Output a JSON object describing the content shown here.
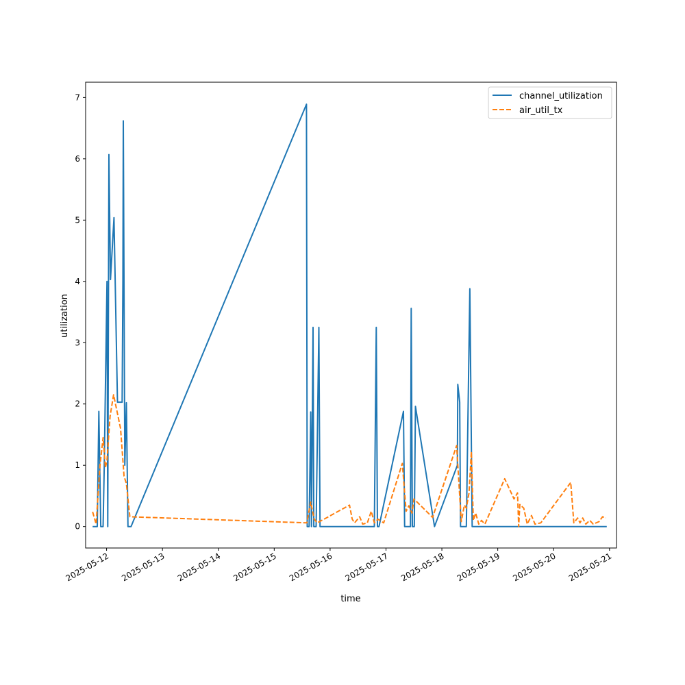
{
  "chart_data": {
    "type": "line",
    "xlabel": "time",
    "ylabel": "utilization",
    "x_is_date": true,
    "xlim": [
      "2025-05-11T15:00",
      "2025-05-21T03:00"
    ],
    "ylim": [
      -0.35,
      7.25
    ],
    "x_ticks": [
      {
        "label": "2025-05-12",
        "value": "2025-05-12T00:00"
      },
      {
        "label": "2025-05-13",
        "value": "2025-05-13T00:00"
      },
      {
        "label": "2025-05-14",
        "value": "2025-05-14T00:00"
      },
      {
        "label": "2025-05-15",
        "value": "2025-05-15T00:00"
      },
      {
        "label": "2025-05-16",
        "value": "2025-05-16T00:00"
      },
      {
        "label": "2025-05-17",
        "value": "2025-05-17T00:00"
      },
      {
        "label": "2025-05-18",
        "value": "2025-05-18T00:00"
      },
      {
        "label": "2025-05-19",
        "value": "2025-05-19T00:00"
      },
      {
        "label": "2025-05-20",
        "value": "2025-05-20T00:00"
      },
      {
        "label": "2025-05-21",
        "value": "2025-05-21T00:00"
      }
    ],
    "y_ticks": [
      {
        "label": "0",
        "value": 0
      },
      {
        "label": "1",
        "value": 1
      },
      {
        "label": "2",
        "value": 2
      },
      {
        "label": "3",
        "value": 3
      },
      {
        "label": "4",
        "value": 4
      },
      {
        "label": "5",
        "value": 5
      },
      {
        "label": "6",
        "value": 6
      },
      {
        "label": "7",
        "value": 7
      }
    ],
    "grid": false,
    "legend_position": "top-right",
    "series": [
      {
        "name": "channel_utilization",
        "color": "#1f77b4",
        "dash": "solid",
        "points": [
          [
            "2025-05-11T18:00",
            0
          ],
          [
            "2025-05-11T20:00",
            0
          ],
          [
            "2025-05-11T20:40",
            1.88
          ],
          [
            "2025-05-11T21:30",
            0
          ],
          [
            "2025-05-11T22:30",
            0
          ],
          [
            "2025-05-11T23:00",
            1.0
          ],
          [
            "2025-05-12T00:10",
            4.0
          ],
          [
            "2025-05-12T00:30",
            0
          ],
          [
            "2025-05-12T01:00",
            6.07
          ],
          [
            "2025-05-12T01:40",
            4.03
          ],
          [
            "2025-05-12T03:10",
            5.04
          ],
          [
            "2025-05-12T04:40",
            2.03
          ],
          [
            "2025-05-12T06:10",
            2.03
          ],
          [
            "2025-05-12T06:40",
            2.03
          ],
          [
            "2025-05-12T07:00",
            4.0
          ],
          [
            "2025-05-12T07:10",
            6.62
          ],
          [
            "2025-05-12T07:50",
            1.0
          ],
          [
            "2025-05-12T08:30",
            2.02
          ],
          [
            "2025-05-12T09:10",
            0
          ],
          [
            "2025-05-12T10:30",
            0
          ],
          [
            "2025-05-15T13:50",
            6.89
          ],
          [
            "2025-05-15T14:10",
            0
          ],
          [
            "2025-05-15T15:00",
            0
          ],
          [
            "2025-05-15T15:40",
            1.87
          ],
          [
            "2025-05-15T16:00",
            0
          ],
          [
            "2025-05-15T16:40",
            3.25
          ],
          [
            "2025-05-15T17:00",
            0
          ],
          [
            "2025-05-15T18:00",
            0
          ],
          [
            "2025-05-15T19:10",
            3.25
          ],
          [
            "2025-05-15T19:40",
            0
          ],
          [
            "2025-05-16T19:00",
            0
          ],
          [
            "2025-05-16T19:50",
            3.25
          ],
          [
            "2025-05-16T20:20",
            0
          ],
          [
            "2025-05-16T21:00",
            0
          ],
          [
            "2025-05-17T07:30",
            1.88
          ],
          [
            "2025-05-17T08:00",
            0
          ],
          [
            "2025-05-17T10:30",
            0
          ],
          [
            "2025-05-17T10:50",
            3.56
          ],
          [
            "2025-05-17T11:20",
            0
          ],
          [
            "2025-05-17T12:10",
            0
          ],
          [
            "2025-05-17T12:40",
            1.96
          ],
          [
            "2025-05-17T20:50",
            0
          ],
          [
            "2025-05-18T06:40",
            1.0
          ],
          [
            "2025-05-18T06:50",
            2.32
          ],
          [
            "2025-05-18T07:40",
            2.03
          ],
          [
            "2025-05-18T08:00",
            0
          ],
          [
            "2025-05-18T10:30",
            0
          ],
          [
            "2025-05-18T12:00",
            3.88
          ],
          [
            "2025-05-18T13:00",
            0
          ],
          [
            "2025-05-20T22:50",
            0
          ]
        ]
      },
      {
        "name": "air_util_tx",
        "color": "#ff7f0e",
        "dash": "dashed",
        "points": [
          [
            "2025-05-11T18:00",
            0.24
          ],
          [
            "2025-05-11T19:30",
            0.04
          ],
          [
            "2025-05-11T21:10",
            1.0
          ],
          [
            "2025-05-11T22:30",
            1.45
          ],
          [
            "2025-05-11T23:30",
            0.96
          ],
          [
            "2025-05-12T00:10",
            1.08
          ],
          [
            "2025-05-12T01:30",
            1.8
          ],
          [
            "2025-05-12T03:00",
            2.15
          ],
          [
            "2025-05-12T06:00",
            1.6
          ],
          [
            "2025-05-12T07:30",
            0.82
          ],
          [
            "2025-05-12T08:30",
            0.7
          ],
          [
            "2025-05-12T10:00",
            0.16
          ],
          [
            "2025-05-15T14:00",
            0.06
          ],
          [
            "2025-05-15T14:40",
            0.2
          ],
          [
            "2025-05-15T15:40",
            0.4
          ],
          [
            "2025-05-15T17:10",
            0.12
          ],
          [
            "2025-05-15T18:30",
            0.06
          ],
          [
            "2025-05-16T08:20",
            0.35
          ],
          [
            "2025-05-16T09:30",
            0.12
          ],
          [
            "2025-05-16T10:30",
            0.06
          ],
          [
            "2025-05-16T12:40",
            0.16
          ],
          [
            "2025-05-16T14:00",
            0.04
          ],
          [
            "2025-05-16T16:00",
            0.06
          ],
          [
            "2025-05-16T17:40",
            0.25
          ],
          [
            "2025-05-16T19:00",
            0.06
          ],
          [
            "2025-05-16T20:30",
            0.12
          ],
          [
            "2025-05-16T23:00",
            0.06
          ],
          [
            "2025-05-17T07:00",
            1.03
          ],
          [
            "2025-05-17T08:40",
            0.25
          ],
          [
            "2025-05-17T09:50",
            0.34
          ],
          [
            "2025-05-17T11:10",
            0.22
          ],
          [
            "2025-05-17T12:00",
            0.45
          ],
          [
            "2025-05-17T20:00",
            0.15
          ],
          [
            "2025-05-18T06:20",
            1.32
          ],
          [
            "2025-05-18T08:20",
            0.08
          ],
          [
            "2025-05-18T09:40",
            0.35
          ],
          [
            "2025-05-18T10:30",
            0.3
          ],
          [
            "2025-05-18T11:40",
            0.55
          ],
          [
            "2025-05-18T12:40",
            1.22
          ],
          [
            "2025-05-18T13:30",
            0.1
          ],
          [
            "2025-05-18T14:30",
            0.22
          ],
          [
            "2025-05-18T15:50",
            0.04
          ],
          [
            "2025-05-18T17:00",
            0.1
          ],
          [
            "2025-05-18T18:30",
            0.04
          ],
          [
            "2025-05-19T03:00",
            0.78
          ],
          [
            "2025-05-19T07:00",
            0.45
          ],
          [
            "2025-05-19T08:30",
            0.55
          ],
          [
            "2025-05-19T09:00",
            0.0
          ],
          [
            "2025-05-19T09:30",
            0.36
          ],
          [
            "2025-05-19T11:10",
            0.3
          ],
          [
            "2025-05-19T12:40",
            0.04
          ],
          [
            "2025-05-19T14:30",
            0.18
          ],
          [
            "2025-05-19T16:00",
            0.04
          ],
          [
            "2025-05-19T18:30",
            0.06
          ],
          [
            "2025-05-20T07:20",
            0.72
          ],
          [
            "2025-05-20T08:40",
            0.06
          ],
          [
            "2025-05-20T10:20",
            0.14
          ],
          [
            "2025-05-20T11:20",
            0.06
          ],
          [
            "2025-05-20T12:30",
            0.14
          ],
          [
            "2025-05-20T13:50",
            0.04
          ],
          [
            "2025-05-20T15:30",
            0.1
          ],
          [
            "2025-05-20T17:00",
            0.04
          ],
          [
            "2025-05-20T19:30",
            0.08
          ],
          [
            "2025-05-20T21:00",
            0.16
          ],
          [
            "2025-05-20T22:30",
            0.14
          ]
        ]
      }
    ]
  }
}
